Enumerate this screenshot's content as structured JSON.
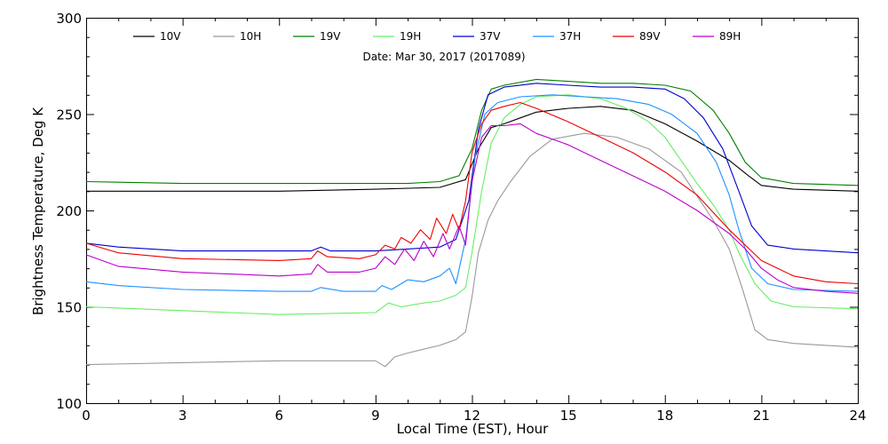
{
  "chart_data": {
    "type": "line",
    "title": "",
    "subtitle": "Date: Mar 30, 2017 (2017089)",
    "xlabel": "Local Time (EST), Hour",
    "ylabel": "Brightness Temperature, Deg K",
    "xlim": [
      0,
      24
    ],
    "ylim": [
      100,
      300
    ],
    "xticks": [
      0,
      3,
      6,
      9,
      12,
      15,
      18,
      21,
      24
    ],
    "xtick_labels": [
      "0",
      "3",
      "6",
      "9",
      "12",
      "15",
      "18",
      "21",
      "24"
    ],
    "yticks": [
      100,
      150,
      200,
      250,
      300
    ],
    "ytick_labels": [
      "100",
      "150",
      "200",
      "250",
      "300"
    ],
    "grid": false,
    "legend_position": "top",
    "series": [
      {
        "name": "10V",
        "color": "#000000",
        "points": [
          [
            0,
            210
          ],
          [
            3,
            210
          ],
          [
            6,
            210
          ],
          [
            9,
            211
          ],
          [
            11,
            212
          ],
          [
            11.8,
            216
          ],
          [
            12.2,
            232
          ],
          [
            12.6,
            243
          ],
          [
            13,
            245
          ],
          [
            13.5,
            248
          ],
          [
            14,
            251
          ],
          [
            15,
            253
          ],
          [
            16,
            254
          ],
          [
            17,
            252
          ],
          [
            18,
            245
          ],
          [
            19,
            236
          ],
          [
            20,
            226
          ],
          [
            20.6,
            218
          ],
          [
            21,
            213
          ],
          [
            22,
            211
          ],
          [
            24,
            210
          ]
        ]
      },
      {
        "name": "10H",
        "color": "#999999",
        "points": [
          [
            0,
            120
          ],
          [
            3,
            121
          ],
          [
            6,
            122
          ],
          [
            8,
            122
          ],
          [
            9,
            122
          ],
          [
            9.3,
            119
          ],
          [
            9.6,
            124
          ],
          [
            10,
            126
          ],
          [
            10.5,
            128
          ],
          [
            11,
            130
          ],
          [
            11.5,
            133
          ],
          [
            11.8,
            137
          ],
          [
            12,
            155
          ],
          [
            12.2,
            178
          ],
          [
            12.5,
            195
          ],
          [
            12.8,
            205
          ],
          [
            13.2,
            215
          ],
          [
            13.8,
            228
          ],
          [
            14.5,
            237
          ],
          [
            15.5,
            240
          ],
          [
            16.5,
            238
          ],
          [
            17.5,
            232
          ],
          [
            18.5,
            220
          ],
          [
            19.5,
            195
          ],
          [
            20,
            180
          ],
          [
            20.4,
            160
          ],
          [
            20.8,
            138
          ],
          [
            21.2,
            133
          ],
          [
            22,
            131
          ],
          [
            23,
            130
          ],
          [
            24,
            129
          ]
        ]
      },
      {
        "name": "19V",
        "color": "#008000",
        "points": [
          [
            0,
            215
          ],
          [
            3,
            214
          ],
          [
            6,
            214
          ],
          [
            9,
            214
          ],
          [
            10,
            214
          ],
          [
            11,
            215
          ],
          [
            11.6,
            218
          ],
          [
            12,
            232
          ],
          [
            12.3,
            252
          ],
          [
            12.6,
            263
          ],
          [
            13,
            265
          ],
          [
            14,
            268
          ],
          [
            15,
            267
          ],
          [
            16,
            266
          ],
          [
            17,
            266
          ],
          [
            18,
            265
          ],
          [
            18.8,
            262
          ],
          [
            19.5,
            252
          ],
          [
            20,
            240
          ],
          [
            20.5,
            225
          ],
          [
            21,
            217
          ],
          [
            22,
            214
          ],
          [
            24,
            213
          ]
        ]
      },
      {
        "name": "19H",
        "color": "#66ee66",
        "points": [
          [
            0,
            150
          ],
          [
            3,
            148
          ],
          [
            6,
            146
          ],
          [
            9,
            147
          ],
          [
            9.4,
            152
          ],
          [
            9.8,
            150
          ],
          [
            10.5,
            152
          ],
          [
            11,
            153
          ],
          [
            11.5,
            156
          ],
          [
            11.8,
            160
          ],
          [
            12,
            178
          ],
          [
            12.3,
            210
          ],
          [
            12.6,
            235
          ],
          [
            13,
            248
          ],
          [
            13.5,
            255
          ],
          [
            14,
            259
          ],
          [
            15,
            260
          ],
          [
            16,
            258
          ],
          [
            16.8,
            253
          ],
          [
            17.5,
            246
          ],
          [
            18,
            238
          ],
          [
            18.5,
            226
          ],
          [
            19,
            214
          ],
          [
            19.5,
            203
          ],
          [
            20,
            190
          ],
          [
            20.3,
            178
          ],
          [
            20.8,
            162
          ],
          [
            21.3,
            153
          ],
          [
            22,
            150
          ],
          [
            24,
            149
          ]
        ]
      },
      {
        "name": "37V",
        "color": "#0000cc",
        "points": [
          [
            0,
            183
          ],
          [
            1,
            181
          ],
          [
            3,
            179
          ],
          [
            6,
            179
          ],
          [
            7,
            179
          ],
          [
            7.3,
            181
          ],
          [
            7.6,
            179
          ],
          [
            9,
            179
          ],
          [
            10,
            180
          ],
          [
            11,
            181
          ],
          [
            11.5,
            185
          ],
          [
            11.9,
            205
          ],
          [
            12.2,
            242
          ],
          [
            12.5,
            260
          ],
          [
            13,
            264
          ],
          [
            14,
            266
          ],
          [
            15,
            265
          ],
          [
            16,
            264
          ],
          [
            17,
            264
          ],
          [
            18,
            263
          ],
          [
            18.6,
            258
          ],
          [
            19.2,
            248
          ],
          [
            19.8,
            232
          ],
          [
            20.3,
            210
          ],
          [
            20.7,
            192
          ],
          [
            21.2,
            182
          ],
          [
            22,
            180
          ],
          [
            24,
            178
          ]
        ]
      },
      {
        "name": "37H",
        "color": "#1e90ff",
        "points": [
          [
            0,
            163
          ],
          [
            1,
            161
          ],
          [
            3,
            159
          ],
          [
            6,
            158
          ],
          [
            7,
            158
          ],
          [
            7.3,
            160
          ],
          [
            8,
            158
          ],
          [
            9,
            158
          ],
          [
            9.2,
            161
          ],
          [
            9.5,
            159
          ],
          [
            10,
            164
          ],
          [
            10.5,
            163
          ],
          [
            11,
            166
          ],
          [
            11.3,
            170
          ],
          [
            11.5,
            162
          ],
          [
            11.8,
            185
          ],
          [
            12.1,
            228
          ],
          [
            12.4,
            250
          ],
          [
            12.8,
            256
          ],
          [
            13.5,
            259
          ],
          [
            14.5,
            260
          ],
          [
            15.5,
            259
          ],
          [
            16.5,
            258
          ],
          [
            17.5,
            255
          ],
          [
            18.2,
            250
          ],
          [
            19,
            240
          ],
          [
            19.6,
            225
          ],
          [
            20,
            208
          ],
          [
            20.3,
            190
          ],
          [
            20.7,
            170
          ],
          [
            21.2,
            162
          ],
          [
            22,
            159
          ],
          [
            24,
            158
          ]
        ]
      },
      {
        "name": "89V",
        "color": "#ee0000",
        "points": [
          [
            0,
            183
          ],
          [
            1,
            178
          ],
          [
            3,
            175
          ],
          [
            6,
            174
          ],
          [
            7,
            175
          ],
          [
            7.2,
            179
          ],
          [
            7.5,
            176
          ],
          [
            8.5,
            175
          ],
          [
            9,
            177
          ],
          [
            9.3,
            182
          ],
          [
            9.6,
            180
          ],
          [
            9.8,
            186
          ],
          [
            10.1,
            183
          ],
          [
            10.4,
            190
          ],
          [
            10.7,
            185
          ],
          [
            10.9,
            196
          ],
          [
            11.2,
            188
          ],
          [
            11.4,
            198
          ],
          [
            11.6,
            190
          ],
          [
            11.8,
            205
          ],
          [
            12,
            230
          ],
          [
            12.3,
            245
          ],
          [
            12.6,
            252
          ],
          [
            13,
            254
          ],
          [
            13.5,
            256
          ],
          [
            14,
            253
          ],
          [
            15,
            246
          ],
          [
            16,
            238
          ],
          [
            17,
            230
          ],
          [
            18,
            220
          ],
          [
            19,
            208
          ],
          [
            20,
            190
          ],
          [
            20.5,
            182
          ],
          [
            21,
            174
          ],
          [
            21.5,
            170
          ],
          [
            22,
            166
          ],
          [
            23,
            163
          ],
          [
            24,
            162
          ]
        ]
      },
      {
        "name": "89H",
        "color": "#bb00cc",
        "points": [
          [
            0,
            177
          ],
          [
            1,
            171
          ],
          [
            3,
            168
          ],
          [
            6,
            166
          ],
          [
            7,
            167
          ],
          [
            7.2,
            172
          ],
          [
            7.5,
            168
          ],
          [
            8.5,
            168
          ],
          [
            9,
            170
          ],
          [
            9.3,
            176
          ],
          [
            9.6,
            172
          ],
          [
            9.9,
            180
          ],
          [
            10.2,
            174
          ],
          [
            10.5,
            184
          ],
          [
            10.8,
            176
          ],
          [
            11.1,
            188
          ],
          [
            11.3,
            180
          ],
          [
            11.6,
            192
          ],
          [
            11.8,
            182
          ],
          [
            12,
            215
          ],
          [
            12.3,
            238
          ],
          [
            12.6,
            244
          ],
          [
            13,
            244
          ],
          [
            13.5,
            245
          ],
          [
            14,
            240
          ],
          [
            15,
            234
          ],
          [
            16,
            226
          ],
          [
            17,
            218
          ],
          [
            18,
            210
          ],
          [
            19,
            200
          ],
          [
            20,
            188
          ],
          [
            20.5,
            180
          ],
          [
            21,
            170
          ],
          [
            21.5,
            164
          ],
          [
            22,
            160
          ],
          [
            23,
            158
          ],
          [
            24,
            157
          ]
        ]
      }
    ]
  }
}
